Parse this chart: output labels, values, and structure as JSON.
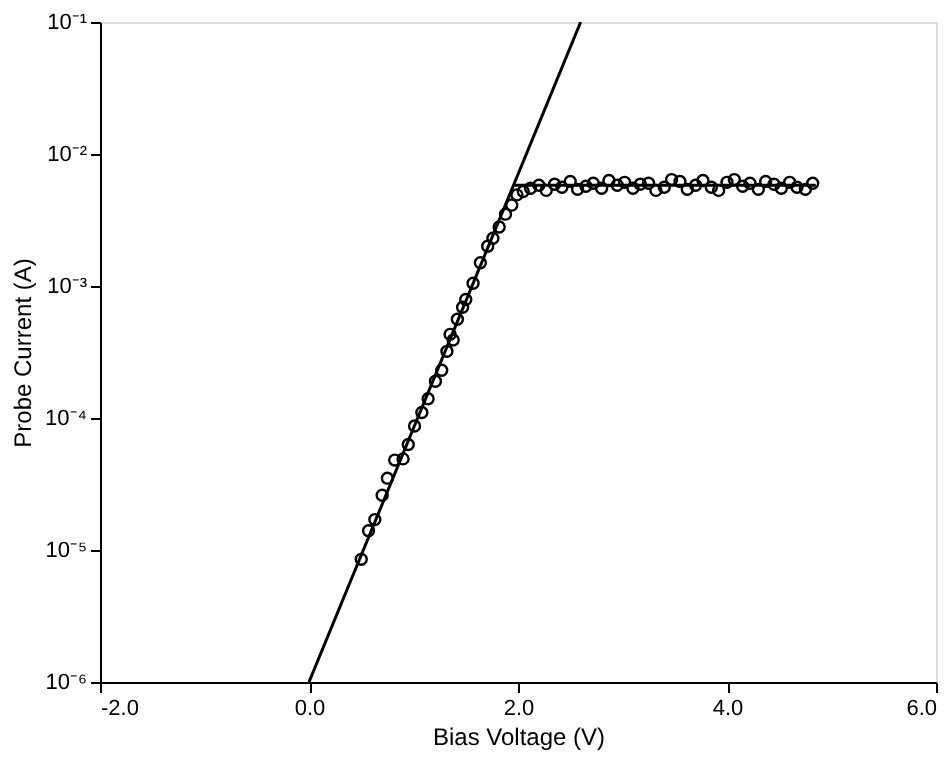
{
  "chart_data": {
    "type": "scatter",
    "xlabel": "Bias Voltage (V)",
    "ylabel": "Probe Current (A)",
    "log": "y",
    "xlim": [
      -2,
      6
    ],
    "xticks": [
      {
        "value": -2,
        "label": "-2.0"
      },
      {
        "value": 0,
        "label": "0.0"
      },
      {
        "value": 2,
        "label": "2.0"
      },
      {
        "value": 4,
        "label": "4.0"
      },
      {
        "value": 6,
        "label": "6.0"
      }
    ],
    "ylim": [
      1e-06,
      0.1
    ],
    "yticks": [
      {
        "value": 1e-06,
        "label": "10⁻⁶"
      },
      {
        "value": 1e-05,
        "label": "10⁻⁵"
      },
      {
        "value": 0.0001,
        "label": "10⁻⁴"
      },
      {
        "value": 0.001,
        "label": "10⁻³"
      },
      {
        "value": 0.01,
        "label": "10⁻²"
      },
      {
        "value": 0.1,
        "label": "10⁻¹"
      }
    ],
    "series": [
      {
        "marker": "circle",
        "color": "#000000",
        "x": [
          0.5,
          0.57,
          0.63,
          0.7,
          0.75,
          0.82,
          0.9,
          0.95,
          1.01,
          1.08,
          1.14,
          1.21,
          1.27,
          1.32,
          1.35,
          1.38,
          1.42,
          1.47,
          1.5,
          1.57,
          1.64,
          1.71,
          1.76,
          1.82,
          1.88,
          1.94,
          1.99,
          2.05,
          2.12,
          2.2,
          2.27,
          2.35,
          2.42,
          2.5,
          2.57,
          2.65,
          2.72,
          2.8,
          2.87,
          2.95,
          3.02,
          3.1,
          3.17,
          3.25,
          3.32,
          3.4,
          3.47,
          3.55,
          3.62,
          3.7,
          3.77,
          3.85,
          3.92,
          4.0,
          4.07,
          4.15,
          4.22,
          4.3,
          4.37,
          4.45,
          4.52,
          4.6,
          4.67,
          4.75,
          4.82
        ],
        "values": [
          8.5e-06,
          1.4e-05,
          1.7e-05,
          2.6e-05,
          3.5e-05,
          4.8e-05,
          4.9e-05,
          6.3e-05,
          8.7e-05,
          0.00011,
          0.00014,
          0.00019,
          0.00023,
          0.00032,
          0.00043,
          0.00039,
          0.00056,
          0.00069,
          0.00079,
          0.00105,
          0.0015,
          0.002,
          0.0023,
          0.0028,
          0.0035,
          0.0041,
          0.0049,
          0.0052,
          0.0055,
          0.0058,
          0.0053,
          0.0059,
          0.0056,
          0.0062,
          0.0054,
          0.0057,
          0.006,
          0.0055,
          0.0063,
          0.0058,
          0.0061,
          0.0055,
          0.0059,
          0.006,
          0.0053,
          0.0056,
          0.0064,
          0.0062,
          0.0054,
          0.0058,
          0.0063,
          0.0056,
          0.0053,
          0.0061,
          0.0064,
          0.0057,
          0.006,
          0.0054,
          0.0062,
          0.0059,
          0.0055,
          0.0061,
          0.0056,
          0.0054,
          0.006
        ]
      },
      {
        "type": "line",
        "marker": "none",
        "line_style": "solid",
        "color": "#000000",
        "x": [
          0,
          2.6
        ],
        "values": [
          1e-06,
          0.1
        ]
      },
      {
        "type": "line",
        "marker": "none",
        "line_style": "solid",
        "color": "#000000",
        "x": [
          1.96,
          4.85
        ],
        "values": [
          0.0058,
          0.0058
        ]
      }
    ]
  }
}
